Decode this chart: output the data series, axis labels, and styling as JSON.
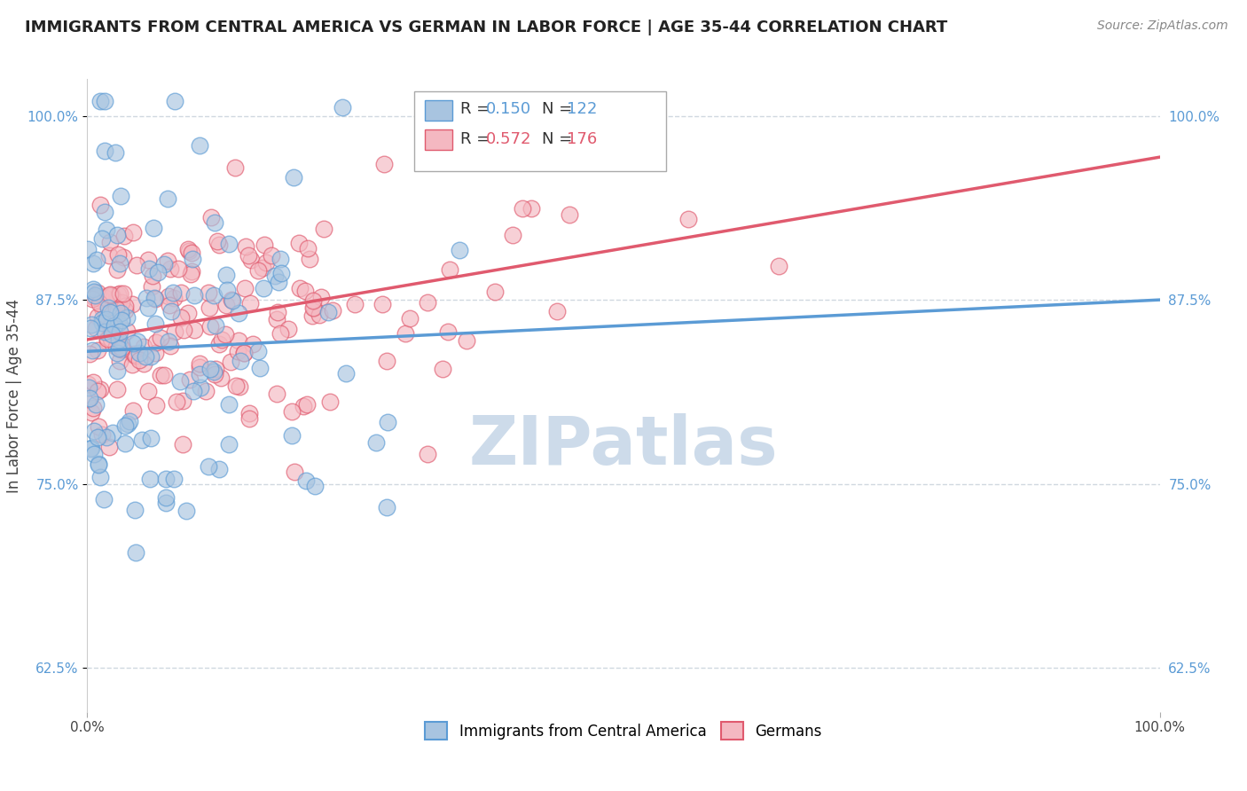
{
  "title": "IMMIGRANTS FROM CENTRAL AMERICA VS GERMAN IN LABOR FORCE | AGE 35-44 CORRELATION CHART",
  "source": "Source: ZipAtlas.com",
  "xlabel": "",
  "ylabel": "In Labor Force | Age 35-44",
  "xlim": [
    0.0,
    1.0
  ],
  "ylim": [
    0.595,
    1.025
  ],
  "yticks": [
    0.625,
    0.75,
    0.875,
    1.0
  ],
  "ytick_labels": [
    "62.5%",
    "75.0%",
    "87.5%",
    "100.0%"
  ],
  "xticks": [
    0.0,
    1.0
  ],
  "xtick_labels": [
    "0.0%",
    "100.0%"
  ],
  "blue_color": "#a8c4e0",
  "blue_line_color": "#5b9bd5",
  "pink_color": "#f4b8c1",
  "pink_line_color": "#e05a6e",
  "legend_blue_label": "Immigrants from Central America",
  "legend_pink_label": "Germans",
  "R_blue": 0.15,
  "N_blue": 122,
  "R_pink": 0.572,
  "N_pink": 176,
  "watermark": "ZIPatlas",
  "watermark_color": "#c8d8e8",
  "background_color": "#ffffff",
  "grid_color": "#d0d8e0",
  "title_fontsize": 13,
  "axis_label_fontsize": 12,
  "tick_fontsize": 11,
  "blue_seed": 42,
  "pink_seed": 99,
  "blue_line_x0": 0.0,
  "blue_line_y0": 0.84,
  "blue_line_x1": 1.0,
  "blue_line_y1": 0.875,
  "pink_line_x0": 0.0,
  "pink_line_y0": 0.848,
  "pink_line_x1": 1.0,
  "pink_line_y1": 0.972
}
